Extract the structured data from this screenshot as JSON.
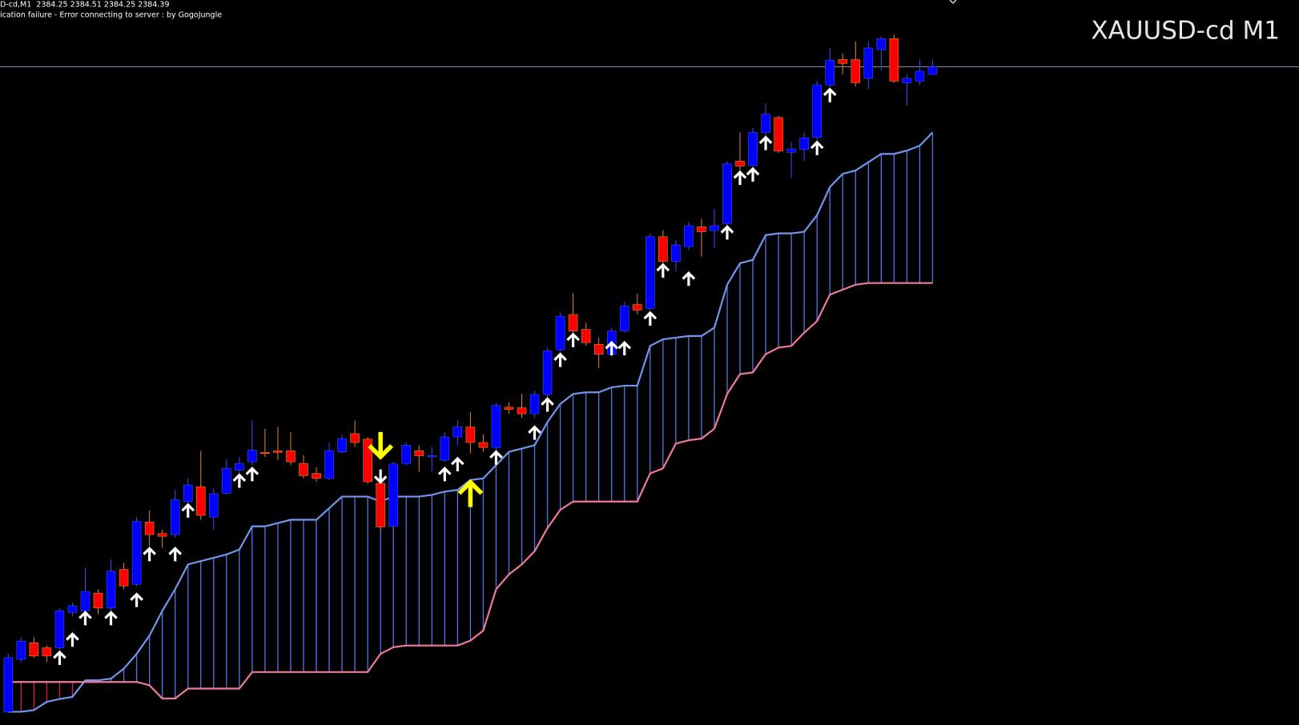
{
  "chart_data": {
    "type": "candlestick",
    "title": "XAUUSD-cd M1",
    "info_line": "D-cd,M1  2384.25 2384.51 2384.25 2384.39",
    "status_line": "ication failure - Error connecting to server : by GogoJungle",
    "ylim": [
      2372.46,
      2385.6
    ],
    "background": "#000000",
    "bull_color": "#0000ff",
    "bear_color": "#ff0000",
    "bull_wick_color": "#3a4cff",
    "bear_wick_color": "#e08a1e",
    "price_line_color": "#8796aa",
    "cloud_up_color": "#4f78e0",
    "cloud_down_color": "#d82038",
    "open": [
      2372.7,
      2373.65,
      2373.95,
      2373.86,
      2373.86,
      2374.5,
      2374.53,
      2374.85,
      2374.58,
      2375.28,
      2375.01,
      2376.14,
      2375.93,
      2375.91,
      2376.51,
      2376.78,
      2376.23,
      2376.66,
      2377.08,
      2377.23,
      2377.4,
      2377.43,
      2377.43,
      2377.2,
      2377.02,
      2376.93,
      2377.41,
      2377.74,
      2377.64,
      2376.84,
      2376.06,
      2377.2,
      2377.43,
      2377.32,
      2377.26,
      2377.68,
      2377.86,
      2377.58,
      2377.49,
      2378.22,
      2378.21,
      2378.1,
      2378.45,
      2379.26,
      2379.9,
      2379.63,
      2379.36,
      2379.18,
      2379.6,
      2380.08,
      2380.01,
      2381.31,
      2380.86,
      2381.13,
      2381.49,
      2381.42,
      2381.55,
      2382.68,
      2382.6,
      2383.2,
      2383.47,
      2382.84,
      2382.89,
      2383.11,
      2384.06,
      2384.52,
      2384.52,
      2384.18,
      2384.7,
      2384.9,
      2384.1,
      2384.13,
      2384.25
    ],
    "high": [
      2373.75,
      2374.05,
      2374.05,
      2373.9,
      2374.58,
      2374.68,
      2375.3,
      2374.92,
      2375.46,
      2375.4,
      2376.23,
      2376.35,
      2376.0,
      2376.72,
      2376.93,
      2377.43,
      2376.75,
      2377.28,
      2377.32,
      2377.98,
      2377.83,
      2377.86,
      2377.77,
      2377.35,
      2377.13,
      2377.58,
      2377.73,
      2377.98,
      2377.68,
      2376.98,
      2377.23,
      2377.58,
      2377.53,
      2377.5,
      2377.77,
      2377.98,
      2378.13,
      2377.73,
      2378.3,
      2378.31,
      2378.46,
      2378.52,
      2379.3,
      2379.93,
      2380.29,
      2379.75,
      2379.48,
      2379.66,
      2380.13,
      2380.28,
      2381.37,
      2381.43,
      2381.25,
      2381.58,
      2381.63,
      2381.81,
      2382.68,
      2383.2,
      2383.28,
      2383.73,
      2383.5,
      2383.02,
      2383.2,
      2384.13,
      2384.73,
      2384.63,
      2384.85,
      2384.85,
      2384.94,
      2384.97,
      2384.25,
      2384.52,
      2384.51
    ],
    "low": [
      2372.7,
      2373.6,
      2373.68,
      2373.6,
      2373.83,
      2374.43,
      2374.47,
      2374.47,
      2374.53,
      2374.92,
      2374.98,
      2375.7,
      2375.67,
      2375.85,
      2376.45,
      2376.18,
      2376.0,
      2376.63,
      2377.02,
      2377.17,
      2377.32,
      2377.26,
      2377.17,
      2376.93,
      2376.87,
      2376.9,
      2377.38,
      2377.5,
      2376.83,
      2376.0,
      2376.03,
      2377.17,
      2377.05,
      2377.05,
      2377.23,
      2377.53,
      2377.38,
      2377.41,
      2377.43,
      2378.1,
      2378.03,
      2378.03,
      2378.4,
      2379.23,
      2379.53,
      2379.33,
      2378.93,
      2379.15,
      2379.57,
      2379.9,
      2379.98,
      2380.83,
      2380.68,
      2381.07,
      2380.95,
      2381.1,
      2381.52,
      2382.45,
      2382.57,
      2383.13,
      2382.83,
      2382.38,
      2382.68,
      2383.05,
      2384.03,
      2384.25,
      2384.03,
      2383.98,
      2384.33,
      2384.1,
      2383.68,
      2384.06,
      2384.25
    ],
    "close": [
      2373.68,
      2373.98,
      2373.71,
      2373.71,
      2374.53,
      2374.62,
      2374.88,
      2374.58,
      2375.25,
      2374.98,
      2376.15,
      2375.91,
      2375.88,
      2376.54,
      2376.81,
      2376.26,
      2376.65,
      2377.11,
      2377.2,
      2377.44,
      2377.38,
      2377.4,
      2377.23,
      2376.98,
      2376.93,
      2377.43,
      2377.65,
      2377.58,
      2376.87,
      2376.05,
      2377.19,
      2377.53,
      2377.34,
      2377.34,
      2377.68,
      2377.86,
      2377.58,
      2377.49,
      2378.25,
      2378.18,
      2378.1,
      2378.45,
      2379.24,
      2379.87,
      2379.6,
      2379.39,
      2379.18,
      2379.6,
      2380.05,
      2379.98,
      2381.31,
      2380.86,
      2381.16,
      2381.51,
      2381.4,
      2381.51,
      2382.63,
      2382.59,
      2383.2,
      2383.53,
      2382.86,
      2382.9,
      2383.1,
      2384.06,
      2384.51,
      2384.45,
      2384.1,
      2384.73,
      2384.9,
      2384.13,
      2384.18,
      2384.31,
      2384.39
    ],
    "senkou_a": {
      "color": "#6f97ee",
      "values": [
        2372.7,
        2372.7,
        2372.73,
        2372.88,
        2372.93,
        2372.97,
        2373.27,
        2373.27,
        2373.3,
        2373.48,
        2373.75,
        2374.08,
        2374.53,
        2374.92,
        2375.37,
        2375.43,
        2375.49,
        2375.55,
        2375.64,
        2376.06,
        2376.06,
        2376.12,
        2376.18,
        2376.18,
        2376.18,
        2376.39,
        2376.6,
        2376.6,
        2376.6,
        2376.51,
        2376.6,
        2376.6,
        2376.6,
        2376.63,
        2376.69,
        2376.72,
        2376.9,
        2376.93,
        2377.17,
        2377.41,
        2377.47,
        2377.53,
        2377.95,
        2378.28,
        2378.46,
        2378.49,
        2378.49,
        2378.58,
        2378.61,
        2378.61,
        2379.33,
        2379.45,
        2379.48,
        2379.51,
        2379.51,
        2379.66,
        2380.44,
        2380.83,
        2380.89,
        2381.34,
        2381.37,
        2381.37,
        2381.4,
        2381.7,
        2382.21,
        2382.45,
        2382.51,
        2382.66,
        2382.81,
        2382.81,
        2382.87,
        2382.96,
        2383.2
      ]
    },
    "senkou_b": {
      "color": "#f07a9a",
      "values": [
        2373.24,
        2373.24,
        2373.24,
        2373.24,
        2373.24,
        2373.24,
        2373.24,
        2373.24,
        2373.24,
        2373.24,
        2373.24,
        2373.18,
        2372.94,
        2372.94,
        2373.12,
        2373.12,
        2373.12,
        2373.12,
        2373.12,
        2373.42,
        2373.42,
        2373.42,
        2373.42,
        2373.42,
        2373.42,
        2373.42,
        2373.42,
        2373.42,
        2373.42,
        2373.75,
        2373.87,
        2373.9,
        2373.9,
        2373.9,
        2373.9,
        2373.9,
        2373.99,
        2374.17,
        2374.92,
        2375.19,
        2375.37,
        2375.61,
        2376.03,
        2376.36,
        2376.51,
        2376.51,
        2376.51,
        2376.51,
        2376.51,
        2376.51,
        2377.02,
        2377.11,
        2377.56,
        2377.62,
        2377.65,
        2377.83,
        2378.46,
        2378.82,
        2378.85,
        2379.18,
        2379.3,
        2379.33,
        2379.57,
        2379.78,
        2380.26,
        2380.35,
        2380.44,
        2380.47,
        2380.47,
        2380.47,
        2380.47,
        2380.47,
        2380.47
      ]
    },
    "up_arrows": {
      "color": "#ffffff",
      "values": [
        null,
        null,
        null,
        null,
        2373.78,
        2374.11,
        2374.5,
        null,
        2374.5,
        null,
        2374.83,
        2375.66,
        null,
        2375.66,
        2376.45,
        null,
        null,
        null,
        2376.99,
        2377.11,
        null,
        null,
        null,
        null,
        null,
        null,
        null,
        null,
        null,
        null,
        null,
        null,
        null,
        null,
        2377.11,
        2377.29,
        null,
        null,
        2377.41,
        null,
        null,
        2377.86,
        2378.37,
        2379.18,
        2379.54,
        null,
        null,
        2379.39,
        2379.39,
        null,
        2379.93,
        2380.8,
        null,
        2380.65,
        null,
        null,
        2381.49,
        2382.48,
        2382.54,
        2383.11,
        null,
        null,
        null,
        2383.02,
        2383.98,
        null,
        null,
        null,
        null,
        null,
        null,
        null,
        null
      ]
    },
    "down_arrows": {
      "color": "#ffffff",
      "values": [
        null,
        null,
        null,
        null,
        null,
        null,
        null,
        null,
        null,
        null,
        null,
        null,
        null,
        null,
        null,
        null,
        null,
        null,
        null,
        null,
        null,
        null,
        null,
        null,
        null,
        null,
        null,
        null,
        null,
        2376.86,
        null,
        null,
        null,
        null,
        null,
        null,
        null,
        null,
        null,
        null,
        null,
        null,
        null,
        null,
        null,
        null,
        null,
        null,
        null,
        null,
        null,
        null,
        null,
        null,
        null,
        null,
        null,
        null,
        null,
        null,
        null,
        null,
        null,
        null,
        null,
        null,
        null,
        null,
        null,
        null,
        null,
        null,
        null
      ]
    },
    "signal_up": {
      "color": "#ffff00",
      "values": [
        null,
        null,
        null,
        null,
        null,
        null,
        null,
        null,
        null,
        null,
        null,
        null,
        null,
        null,
        null,
        null,
        null,
        null,
        null,
        null,
        null,
        null,
        null,
        null,
        null,
        null,
        null,
        null,
        null,
        null,
        null,
        null,
        null,
        null,
        null,
        null,
        2376.86,
        null,
        null,
        null,
        null,
        null,
        null,
        null,
        null,
        null,
        null,
        null,
        null,
        null,
        null,
        null,
        null,
        null,
        null,
        null,
        null,
        null,
        null,
        null,
        null,
        null,
        null,
        null,
        null,
        null,
        null,
        null,
        null,
        null,
        null,
        null,
        null
      ]
    },
    "signal_down": {
      "color": "#ffff00",
      "values": [
        null,
        null,
        null,
        null,
        null,
        null,
        null,
        null,
        null,
        null,
        null,
        null,
        null,
        null,
        null,
        null,
        null,
        null,
        null,
        null,
        null,
        null,
        null,
        null,
        null,
        null,
        null,
        null,
        null,
        2377.32,
        null,
        null,
        null,
        null,
        null,
        null,
        null,
        null,
        null,
        null,
        null,
        null,
        null,
        null,
        null,
        null,
        null,
        null,
        null,
        null,
        null,
        null,
        null,
        null,
        null,
        null,
        null,
        null,
        null,
        null,
        null,
        null,
        null,
        null,
        null,
        null,
        null,
        null,
        null,
        null,
        null,
        null,
        null
      ]
    }
  }
}
